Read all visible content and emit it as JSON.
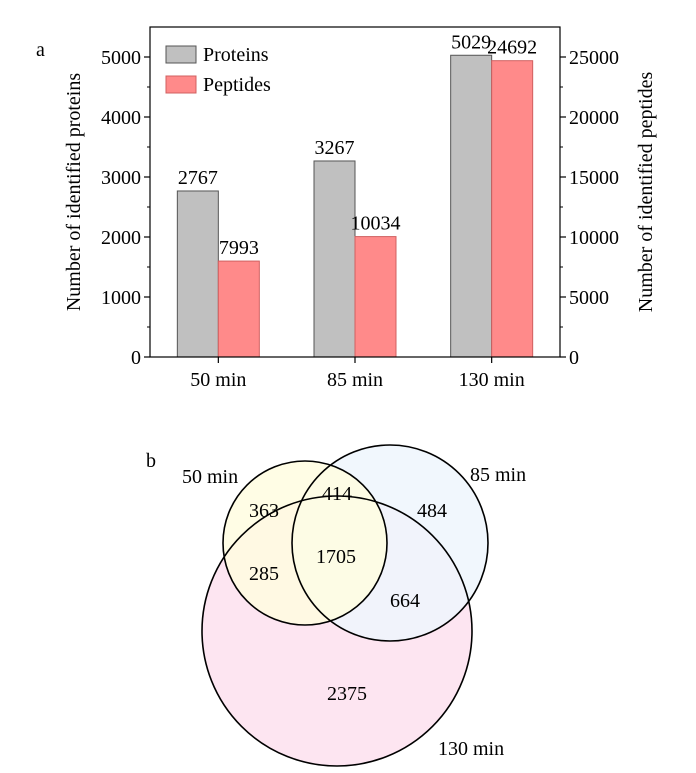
{
  "chart_data": [
    {
      "type": "bar",
      "panel_label": "a",
      "categories": [
        "50 min",
        "85 min",
        "130 min"
      ],
      "series": [
        {
          "name": "Proteins",
          "axis": "left",
          "values": [
            2767,
            3267,
            5029
          ],
          "color": "#c0c0c0"
        },
        {
          "name": "Peptides",
          "axis": "right",
          "values": [
            7993,
            10034,
            24692
          ],
          "color": "#ff8a8a"
        }
      ],
      "ylabel": "Number of identified proteins",
      "y2label": "Number of identified peptides",
      "ylim": [
        0,
        5500
      ],
      "y2lim": [
        0,
        27500
      ],
      "yticks": [
        "0",
        "1000",
        "2000",
        "3000",
        "4000",
        "5000"
      ],
      "y2ticks": [
        "0",
        "5000",
        "10000",
        "15000",
        "20000",
        "25000"
      ],
      "legend": "top-left"
    },
    {
      "type": "venn",
      "panel_label": "b",
      "sets": [
        {
          "name": "50 min",
          "color": "#fffde0"
        },
        {
          "name": "85 min",
          "color": "#eef6fd"
        },
        {
          "name": "130 min",
          "color": "#fde0ee"
        }
      ],
      "regions": {
        "only_50": "363",
        "50_85": "414",
        "only_85": "484",
        "50_130": "285",
        "all": "1705",
        "85_130": "664",
        "only_130": "2375"
      }
    }
  ]
}
